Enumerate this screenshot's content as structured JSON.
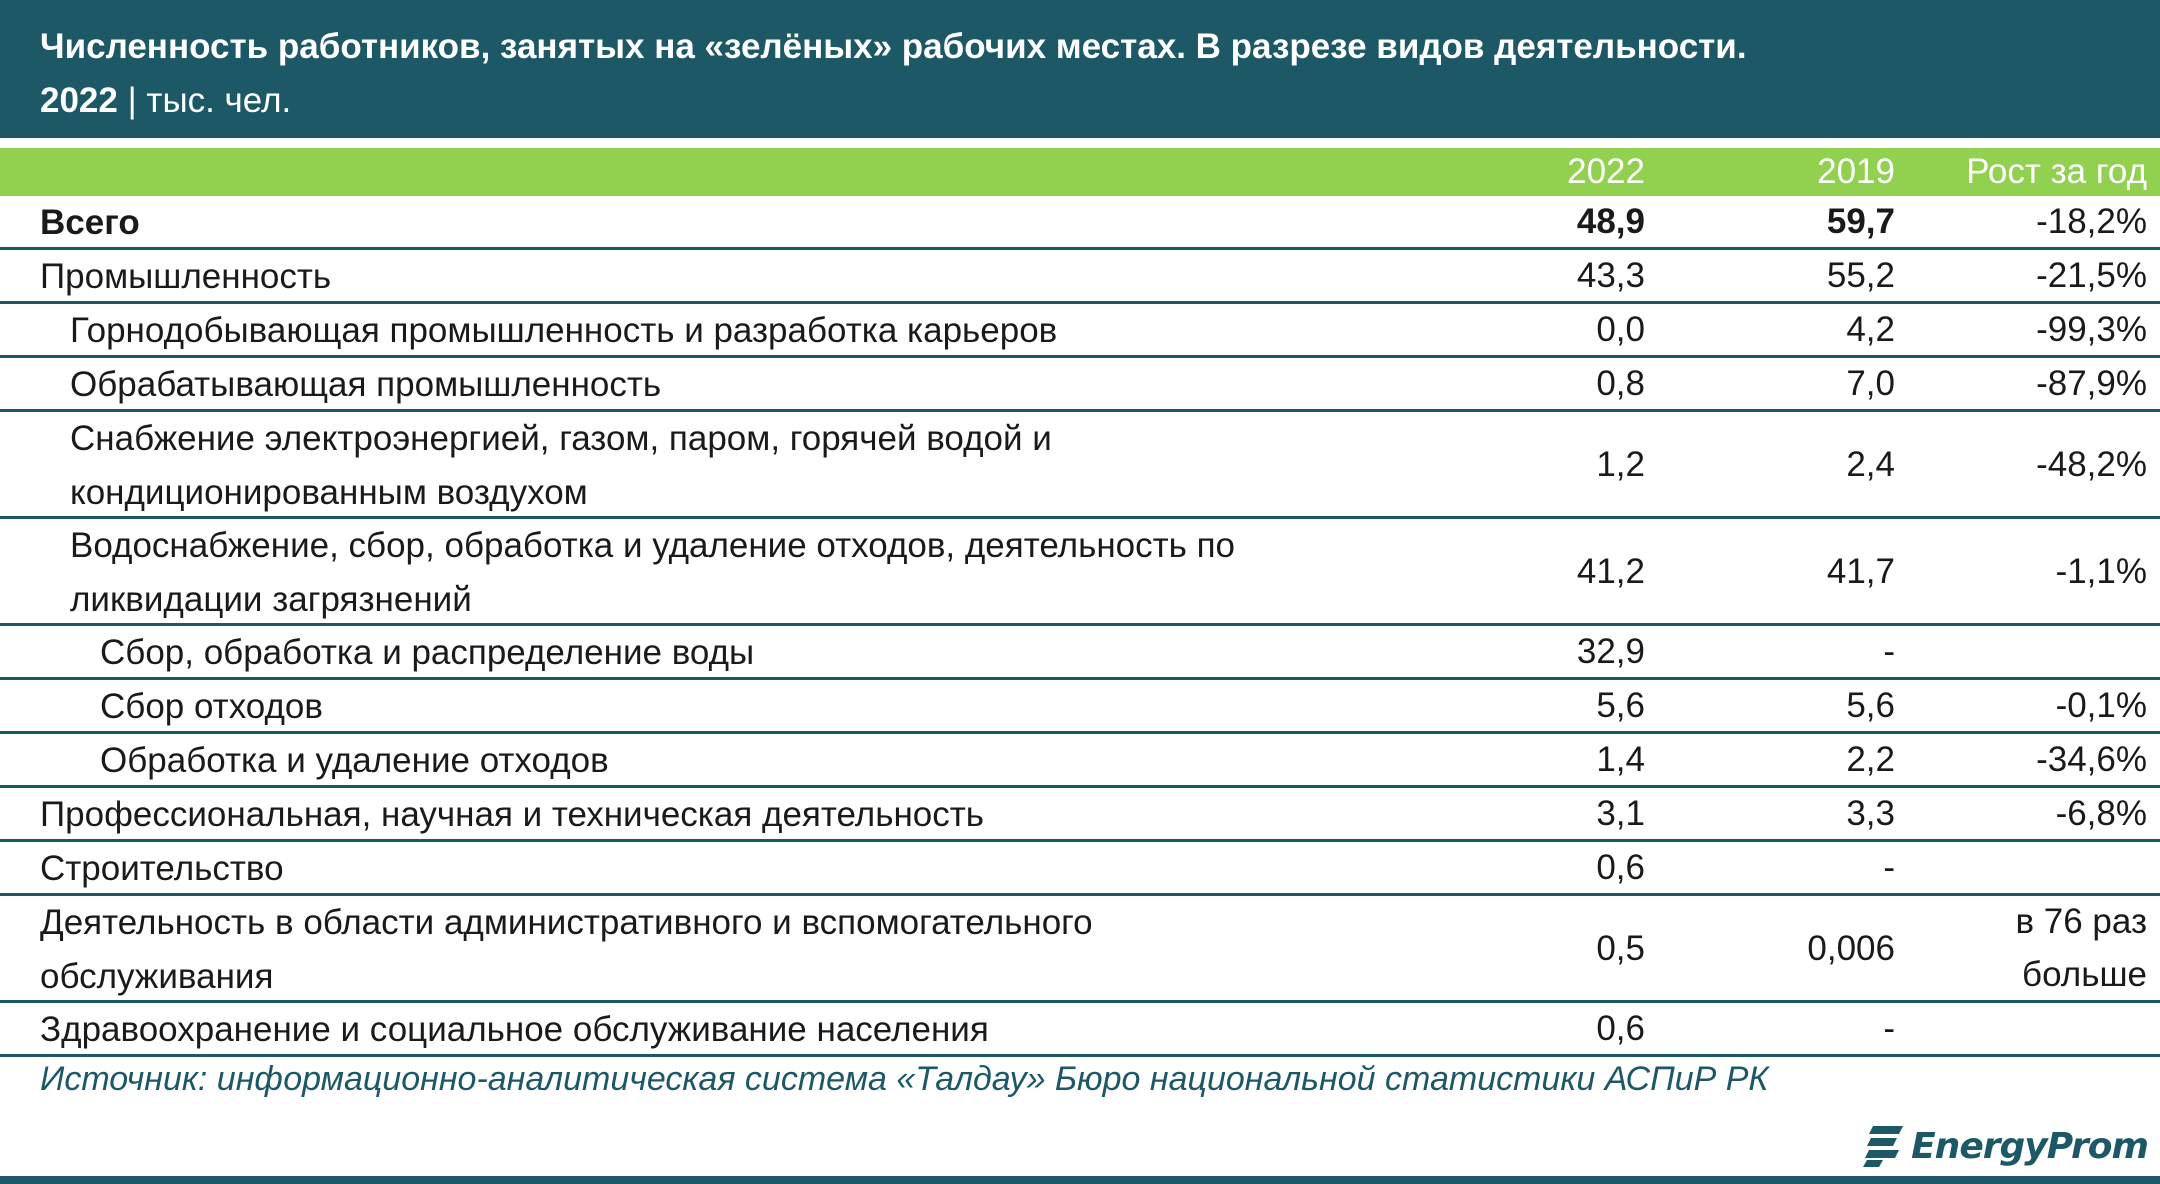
{
  "title": {
    "line1": "Численность работников, занятых на «зелёных» рабочих местах. В разрезе видов деятельности.",
    "year": "2022",
    "unit": " | тыс. чел."
  },
  "columns": {
    "c2022": "2022",
    "c2019": "2019",
    "growth": "Рост за год"
  },
  "rows": [
    {
      "label": "Всего",
      "v2022": "48,9",
      "v2019": "59,7",
      "growth": "-18,2%"
    },
    {
      "label": "Промышленность",
      "v2022": "43,3",
      "v2019": "55,2",
      "growth": "-21,5%"
    },
    {
      "label": "Горнодобывающая промышленность и разработка карьеров",
      "v2022": "0,0",
      "v2019": "4,2",
      "growth": "-99,3%"
    },
    {
      "label": "Обрабатывающая промышленность",
      "v2022": "0,8",
      "v2019": "7,0",
      "growth": "-87,9%"
    },
    {
      "label": "Снабжение электроэнергией, газом, паром, горячей водой и кондиционированным воздухом",
      "v2022": "1,2",
      "v2019": "2,4",
      "growth": "-48,2%"
    },
    {
      "label": "Водоснабжение, сбор, обработка и удаление отходов, деятельность по ликвидации загрязнений",
      "v2022": "41,2",
      "v2019": "41,7",
      "growth": "-1,1%"
    },
    {
      "label": "Сбор, обработка и распределение воды",
      "v2022": "32,9",
      "v2019": "-",
      "growth": ""
    },
    {
      "label": "Сбор отходов",
      "v2022": "5,6",
      "v2019": "5,6",
      "growth": "-0,1%"
    },
    {
      "label": "Обработка и удаление отходов",
      "v2022": "1,4",
      "v2019": "2,2",
      "growth": "-34,6%"
    },
    {
      "label": "Профессиональная, научная и техническая деятельность",
      "v2022": "3,1",
      "v2019": "3,3",
      "growth": "-6,8%"
    },
    {
      "label": "Строительство",
      "v2022": "0,6",
      "v2019": "-",
      "growth": ""
    },
    {
      "label": "Деятельность в области административного и вспомогательного обслуживания",
      "v2022": "0,5",
      "v2019": "0,006",
      "growth": "в 76 раз больше"
    },
    {
      "label": "Здравоохранение и социальное обслуживание населения",
      "v2022": "0,6",
      "v2019": "-",
      "growth": ""
    }
  ],
  "source": "Источник: информационно-аналитическая система «Талдау» Бюро национальной статистики АСПиР РК",
  "logo": {
    "text": "EnergyProm",
    "icon": "energyprom-logo-icon"
  },
  "colors": {
    "title_bg": "#1c5866",
    "header_bg": "#92d050",
    "rule": "#1c5866"
  },
  "chart_data": {
    "type": "table",
    "title": "Численность работников, занятых на «зелёных» рабочих местах. В разрезе видов деятельности.",
    "subtitle": "2022 | тыс. чел.",
    "columns": [
      "",
      "2022",
      "2019",
      "Рост за год"
    ],
    "rows": [
      [
        "Всего",
        "48,9",
        "59,7",
        "-18,2%"
      ],
      [
        "Промышленность",
        "43,3",
        "55,2",
        "-21,5%"
      ],
      [
        "Горнодобывающая промышленность и разработка карьеров",
        "0,0",
        "4,2",
        "-99,3%"
      ],
      [
        "Обрабатывающая промышленность",
        "0,8",
        "7,0",
        "-87,9%"
      ],
      [
        "Снабжение электроэнергией, газом, паром, горячей водой и кондиционированным воздухом",
        "1,2",
        "2,4",
        "-48,2%"
      ],
      [
        "Водоснабжение, сбор, обработка и удаление отходов, деятельность по ликвидации загрязнений",
        "41,2",
        "41,7",
        "-1,1%"
      ],
      [
        "Сбор, обработка и распределение воды",
        "32,9",
        "-",
        ""
      ],
      [
        "Сбор отходов",
        "5,6",
        "5,6",
        "-0,1%"
      ],
      [
        "Обработка и удаление отходов",
        "1,4",
        "2,2",
        "-34,6%"
      ],
      [
        "Профессиональная, научная и техническая деятельность",
        "3,1",
        "3,3",
        "-6,8%"
      ],
      [
        "Строительство",
        "0,6",
        "-",
        ""
      ],
      [
        "Деятельность в области административного и вспомогательного обслуживания",
        "0,5",
        "0,006",
        "в 76 раз больше"
      ],
      [
        "Здравоохранение и социальное обслуживание населения",
        "0,6",
        "-",
        ""
      ]
    ]
  }
}
